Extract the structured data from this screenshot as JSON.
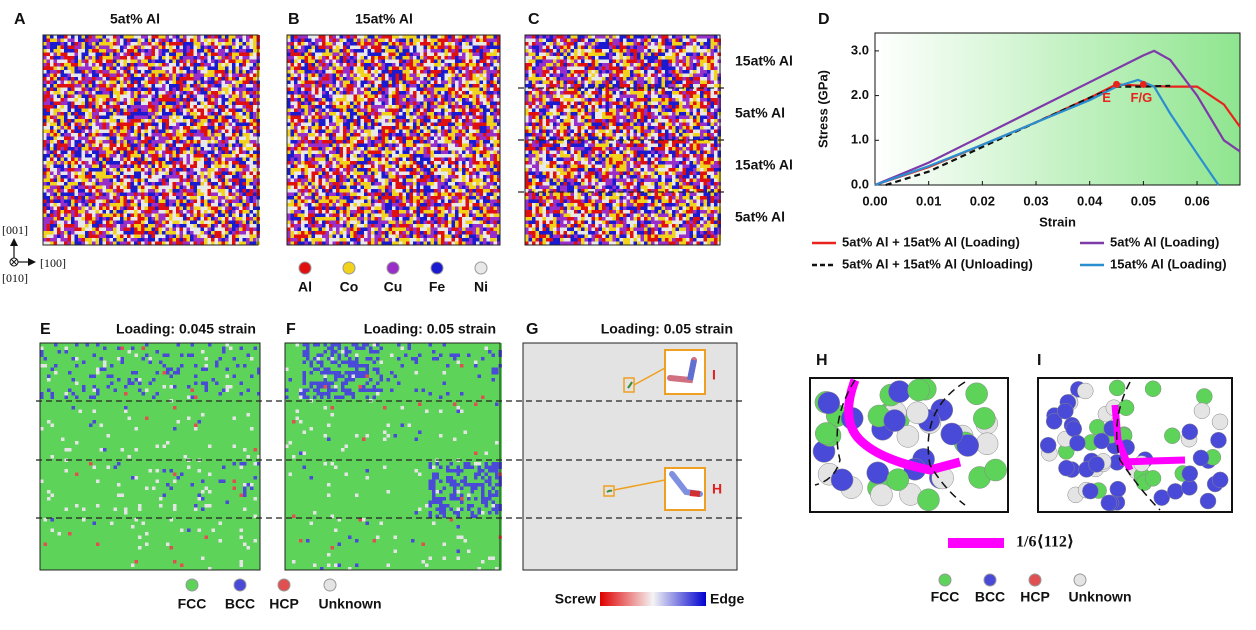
{
  "panels": {
    "A": {
      "label": "A",
      "title": "5at% Al"
    },
    "B": {
      "label": "B",
      "title": "15at% Al"
    },
    "C": {
      "label": "C",
      "layers": [
        "15at% Al",
        "5at% Al",
        "15at% Al",
        "5at% Al"
      ]
    },
    "D": {
      "label": "D"
    },
    "E": {
      "label": "E",
      "title": "Loading: 0.045 strain"
    },
    "F": {
      "label": "F",
      "title": "Loading: 0.05 strain"
    },
    "G": {
      "label": "G",
      "title": "Loading: 0.05 strain",
      "callouts": [
        "I",
        "H"
      ],
      "colorbar": [
        "Screw",
        "Edge"
      ]
    },
    "H": {
      "label": "H"
    },
    "I": {
      "label": "I"
    }
  },
  "axes_indicator": [
    "[001]",
    "[100]",
    "[010]"
  ],
  "elements": [
    {
      "name": "Al",
      "color": "#e01010"
    },
    {
      "name": "Co",
      "color": "#f2d21b"
    },
    {
      "name": "Cu",
      "color": "#9a2ec8"
    },
    {
      "name": "Fe",
      "color": "#1a1ad0"
    },
    {
      "name": "Ni",
      "color": "#e8e8e8"
    }
  ],
  "structures": [
    {
      "name": "FCC",
      "color": "#5dd35a"
    },
    {
      "name": "BCC",
      "color": "#4a4ad8"
    },
    {
      "name": "HCP",
      "color": "#e05050"
    },
    {
      "name": "Unknown",
      "color": "#e4e4e4"
    }
  ],
  "burgers": "1/6⟨112⟩",
  "chart_data": {
    "type": "line",
    "xlabel": "Strain",
    "ylabel": "Stress (GPa)",
    "xlim": [
      0,
      0.068
    ],
    "ylim": [
      0,
      3.4
    ],
    "xticks": [
      {
        "value": 0,
        "label": "0.00"
      },
      {
        "value": 0.01,
        "label": "0.01"
      },
      {
        "value": 0.02,
        "label": "0.02"
      },
      {
        "value": 0.03,
        "label": "0.03"
      },
      {
        "value": 0.04,
        "label": "0.04"
      },
      {
        "value": 0.05,
        "label": "0.05"
      },
      {
        "value": 0.06,
        "label": "0.06"
      }
    ],
    "yticks": [
      {
        "value": 0,
        "label": "0.0"
      },
      {
        "value": 1,
        "label": "1.0"
      },
      {
        "value": 2,
        "label": "2.0"
      },
      {
        "value": 3,
        "label": "3.0"
      }
    ],
    "series": [
      {
        "name": "5at% Al + 15at% Al (Loading)",
        "color": "#e8231c",
        "dash": false,
        "x": [
          0,
          0.01,
          0.02,
          0.03,
          0.04,
          0.045,
          0.05,
          0.055,
          0.06,
          0.065,
          0.068
        ],
        "values": [
          0,
          0.4,
          0.9,
          1.4,
          1.95,
          2.25,
          2.22,
          2.2,
          2.2,
          1.8,
          1.3
        ]
      },
      {
        "name": "5at% Al (Loading)",
        "color": "#7e3aa8",
        "dash": false,
        "x": [
          0,
          0.01,
          0.02,
          0.03,
          0.04,
          0.05,
          0.052,
          0.055,
          0.06,
          0.065,
          0.068
        ],
        "values": [
          0,
          0.5,
          1.1,
          1.7,
          2.3,
          2.9,
          3.0,
          2.8,
          2.0,
          1.0,
          0.75
        ]
      },
      {
        "name": "5at% Al + 15at% Al (Unloading)",
        "color": "#111111",
        "dash": true,
        "x": [
          0.002,
          0.01,
          0.02,
          0.03,
          0.04,
          0.045,
          0.05,
          0.055
        ],
        "values": [
          0,
          0.3,
          0.85,
          1.4,
          1.95,
          2.2,
          2.2,
          2.22
        ]
      },
      {
        "name": "15at% Al (Loading)",
        "color": "#2a8fd0",
        "dash": false,
        "x": [
          0,
          0.01,
          0.02,
          0.03,
          0.04,
          0.045,
          0.049,
          0.052,
          0.055,
          0.06,
          0.064
        ],
        "values": [
          0,
          0.42,
          0.9,
          1.4,
          1.9,
          2.2,
          2.35,
          2.2,
          1.6,
          0.7,
          0
        ]
      }
    ],
    "annotations": [
      {
        "text": "E",
        "x": 0.045,
        "y": 2.25,
        "color": "#e8231c"
      },
      {
        "text": "F/G",
        "x": 0.05,
        "y": 2.25,
        "color": "#e8231c"
      }
    ]
  }
}
